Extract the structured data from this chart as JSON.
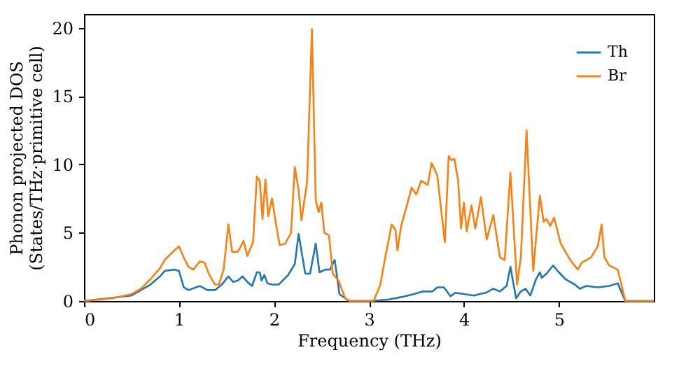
{
  "chart_data": {
    "type": "line",
    "xlabel": "Frequency (THz)",
    "ylabel": "Phonon projected DOS\n(States/THz·primitive cell)",
    "xlim": [
      0,
      6
    ],
    "xticks": [
      0,
      1,
      2,
      3,
      4,
      5
    ],
    "ylim": [
      0,
      21
    ],
    "yticks": [
      0,
      5,
      10,
      15,
      20
    ],
    "grid": false,
    "legend": "top right",
    "marker": "none",
    "line_style": "solid",
    "series": [
      {
        "name": "Th",
        "color": "#1f77b4",
        "x": [
          0,
          0.5,
          0.7,
          0.8,
          0.85,
          0.95,
          1.0,
          1.05,
          1.1,
          1.22,
          1.3,
          1.38,
          1.45,
          1.52,
          1.57,
          1.62,
          1.67,
          1.72,
          1.77,
          1.82,
          1.85,
          1.87,
          1.9,
          1.93,
          1.98,
          2.05,
          2.15,
          2.22,
          2.26,
          2.33,
          2.38,
          2.44,
          2.48,
          2.54,
          2.59,
          2.64,
          2.69,
          2.79,
          3.01,
          3.2,
          3.35,
          3.47,
          3.57,
          3.67,
          3.72,
          3.79,
          3.86,
          3.91,
          4.01,
          4.11,
          4.16,
          4.23,
          4.31,
          4.38,
          4.45,
          4.49,
          4.55,
          4.6,
          4.65,
          4.7,
          4.76,
          4.8,
          4.82,
          4.87,
          4.94,
          5.0,
          5.07,
          5.17,
          5.22,
          5.29,
          5.41,
          5.53,
          5.62,
          5.7,
          6.0
        ],
        "values": [
          0,
          0.4,
          1.2,
          1.8,
          2.2,
          2.3,
          2.2,
          1.0,
          0.8,
          1.1,
          0.8,
          0.8,
          1.2,
          1.8,
          1.4,
          1.5,
          1.8,
          1.4,
          1.1,
          2.1,
          2.1,
          1.5,
          1.9,
          1.3,
          1.2,
          1.2,
          1.9,
          2.7,
          4.9,
          2.0,
          2.0,
          4.2,
          2.1,
          2.3,
          2.3,
          3.0,
          0.5,
          0,
          0,
          0.1,
          0.3,
          0.5,
          0.7,
          0.7,
          1.0,
          1.0,
          0.35,
          0.6,
          0.5,
          0.4,
          0.5,
          0.6,
          0.9,
          0.7,
          1.1,
          2.5,
          0.2,
          0.7,
          0.9,
          0.4,
          1.6,
          2.1,
          1.7,
          2.0,
          2.6,
          2.1,
          1.6,
          1.2,
          0.9,
          1.1,
          1.0,
          1.1,
          1.3,
          0,
          0
        ]
      },
      {
        "name": "Br",
        "color": "#ff7f0e",
        "x": [
          0,
          0.3,
          0.5,
          0.6,
          0.7,
          0.8,
          0.85,
          0.95,
          1.0,
          1.05,
          1.1,
          1.15,
          1.22,
          1.27,
          1.32,
          1.38,
          1.42,
          1.47,
          1.52,
          1.56,
          1.62,
          1.68,
          1.72,
          1.78,
          1.82,
          1.85,
          1.88,
          1.91,
          1.94,
          1.98,
          2.02,
          2.06,
          2.12,
          2.18,
          2.22,
          2.26,
          2.29,
          2.35,
          2.4,
          2.44,
          2.47,
          2.5,
          2.53,
          2.58,
          2.62,
          2.68,
          2.75,
          2.8,
          3.05,
          3.12,
          3.18,
          3.24,
          3.28,
          3.3,
          3.34,
          3.4,
          3.45,
          3.5,
          3.55,
          3.62,
          3.66,
          3.72,
          3.78,
          3.8,
          3.84,
          3.87,
          3.9,
          3.94,
          3.97,
          4.0,
          4.03,
          4.08,
          4.12,
          4.18,
          4.24,
          4.31,
          4.38,
          4.43,
          4.49,
          4.56,
          4.6,
          4.66,
          4.73,
          4.8,
          4.84,
          4.87,
          4.91,
          4.95,
          5.02,
          5.12,
          5.2,
          5.24,
          5.34,
          5.41,
          5.45,
          5.48,
          5.53,
          5.62,
          5.7,
          6.0
        ],
        "values": [
          0,
          0.2,
          0.5,
          0.9,
          1.6,
          2.4,
          3.0,
          3.7,
          4.0,
          3.2,
          2.5,
          2.3,
          2.9,
          2.8,
          1.9,
          1.2,
          1.2,
          2.3,
          5.6,
          3.6,
          3.6,
          4.4,
          3.3,
          4.3,
          9.1,
          8.8,
          6.0,
          8.9,
          6.2,
          7.5,
          5.7,
          4.1,
          4.2,
          5.0,
          9.8,
          8.1,
          5.9,
          8.8,
          19.9,
          7.4,
          6.5,
          7.2,
          5.0,
          4.8,
          2.0,
          1.5,
          0.2,
          0,
          0,
          1.2,
          3.5,
          5.6,
          5.2,
          3.7,
          5.5,
          7.0,
          8.3,
          7.8,
          8.8,
          8.5,
          10.1,
          9.2,
          5.5,
          4.3,
          10.6,
          10.3,
          10.4,
          8.8,
          5.3,
          7.2,
          5.1,
          7.0,
          5.3,
          7.6,
          4.5,
          6.3,
          3.2,
          3.0,
          9.4,
          1.2,
          3.2,
          12.5,
          2.2,
          7.7,
          5.8,
          6.0,
          5.5,
          6.1,
          4.2,
          3.0,
          2.3,
          2.8,
          3.2,
          4.0,
          5.6,
          3.2,
          2.6,
          2.3,
          0,
          0
        ]
      }
    ]
  }
}
